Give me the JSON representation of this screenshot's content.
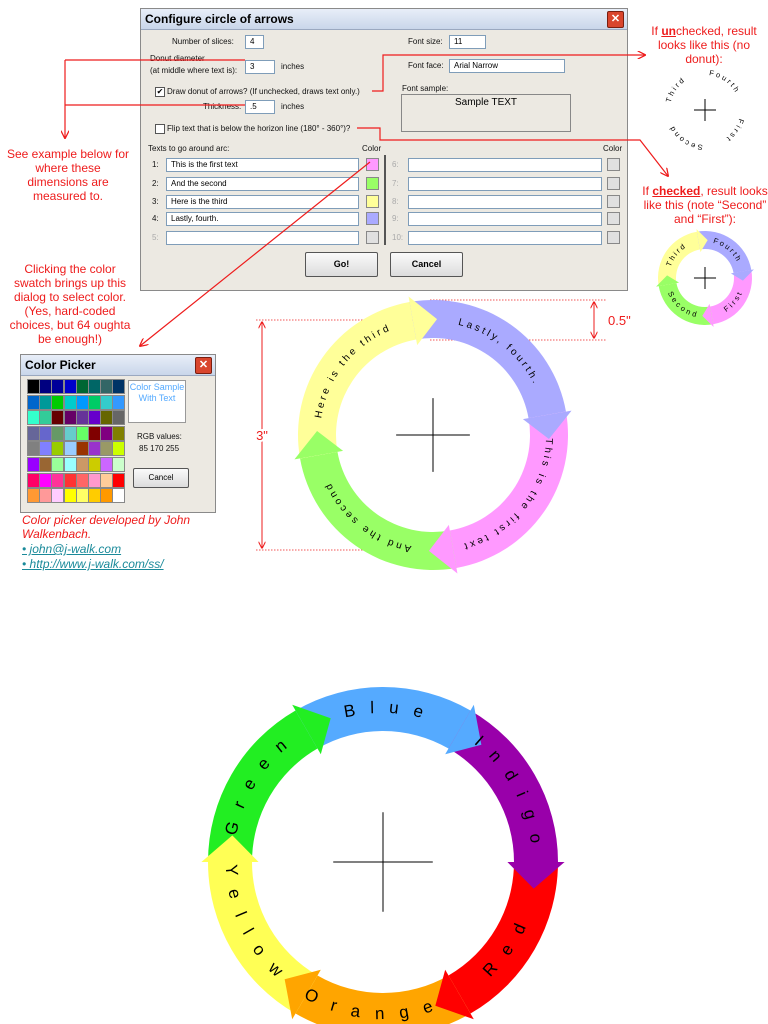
{
  "config_dialog": {
    "title": "Configure circle of arrows",
    "slices_label": "Number of slices:",
    "slices_value": "4",
    "diameter_label": [
      "Donut diameter",
      "(at middle where text is):"
    ],
    "diameter_value": "3",
    "diameter_unit": "inches",
    "donut_checkbox": "Draw donut of arrows? (If unchecked, draws text only.)",
    "thickness_label": "Thickness:",
    "thickness_value": ".5",
    "thickness_unit": "inches",
    "flip_checkbox": "Flip text that is below the horizon line (180° - 360°)?",
    "font_size_label": "Font size:",
    "font_size_value": "11",
    "font_face_label": "Font face:",
    "font_face_value": "Arial Narrow",
    "font_sample_label": "Font sample:",
    "font_sample_text": "Sample TEXT",
    "texts_label": "Texts to go around arc:",
    "color_header": "Color",
    "rows": [
      {
        "num": "1:",
        "text": "This is the first text",
        "color": "#ff99ff"
      },
      {
        "num": "2:",
        "text": "And the second",
        "color": "#99ff66"
      },
      {
        "num": "3:",
        "text": "Here is the third",
        "color": "#ffff99"
      },
      {
        "num": "4:",
        "text": "Lastly, fourth.",
        "color": "#aaaaff"
      },
      {
        "num": "5:",
        "color": "#e0e0e0"
      },
      {
        "num": "6:",
        "color": "#e0e0e0"
      },
      {
        "num": "7:",
        "color": "#e0e0e0"
      },
      {
        "num": "8:",
        "color": "#e0e0e0"
      },
      {
        "num": "9:",
        "color": "#e0e0e0"
      },
      {
        "num": "10:",
        "color": "#e0e0e0"
      }
    ],
    "go": "Go!",
    "cancel": "Cancel"
  },
  "annotations": {
    "dimensions": "See example below for where these dimensions are measured to.",
    "unchecked": {
      "pre": "If ",
      "emph": "un",
      "post": "checked, result looks like this (no donut):"
    },
    "checked": {
      "pre": "If ",
      "emph": "checked",
      "post": ", result looks like this (note “Second” and “First”):"
    },
    "swatch": "Clicking the color swatch brings up this dialog to select color. (Yes, hard-coded choices, but 64 oughta be enough!)"
  },
  "color_picker": {
    "title": "Color Picker",
    "palette": [
      "#000000",
      "#000080",
      "#000099",
      "#0000cc",
      "#006633",
      "#006666",
      "#336666",
      "#003366",
      "#0066cc",
      "#009999",
      "#00cc00",
      "#00cccc",
      "#0099ff",
      "#00cc66",
      "#33cccc",
      "#3399ff",
      "#33ffcc",
      "#33cc99",
      "#660000",
      "#660066",
      "#663399",
      "#6600cc",
      "#666600",
      "#666666",
      "#666699",
      "#6666cc",
      "#669966",
      "#66cccc",
      "#66ff66",
      "#800000",
      "#800080",
      "#808000",
      "#808080",
      "#8080ff",
      "#99cc00",
      "#99ccff",
      "#993300",
      "#9933cc",
      "#999966",
      "#ccff00",
      "#9900ff",
      "#996633",
      "#99ff99",
      "#99ffff",
      "#cc9966",
      "#cccc00",
      "#cc66ff",
      "#ccffcc",
      "#ff0066",
      "#ff00ff",
      "#ff3399",
      "#ff3333",
      "#ff6666",
      "#ff99cc",
      "#ffcc99",
      "#ff0000",
      "#ff9933",
      "#ff9999",
      "#ffccff",
      "#ffff00",
      "#ffff66",
      "#ffcc00",
      "#ff9900",
      "#ffffff"
    ],
    "sample": "Color Sample With Text",
    "sample_color": "#55aaff",
    "rgb_label": "RGB values:",
    "rgb_value": "85 170 255",
    "cancel": "Cancel"
  },
  "credits": {
    "text": "Color picker developed by John Walkenbach.",
    "email": "• john@j-walk.com",
    "url": "• http://www.j-walk.com/ss/"
  },
  "example_donut": {
    "diameter_label": "3\"",
    "thickness_label": "0.5\"",
    "slices": [
      {
        "text": "This is the first text",
        "color": "#ff99ff"
      },
      {
        "text": "And the second",
        "color": "#99ff66"
      },
      {
        "text": "Here is the third",
        "color": "#ffff99"
      },
      {
        "text": "Lastly, fourth.",
        "color": "#aaaaff"
      }
    ]
  },
  "unchecked_example": {
    "texts": [
      "First",
      "Second",
      "Third",
      "Fourth"
    ]
  },
  "checked_example": {
    "slices": [
      {
        "text": "First",
        "color": "#ff99ff"
      },
      {
        "text": "Second",
        "color": "#99ff66"
      },
      {
        "text": "Third",
        "color": "#ffff99"
      },
      {
        "text": "Fourth",
        "color": "#aaaaff"
      }
    ]
  },
  "rainbow_donut": {
    "slices": [
      {
        "text": "Red",
        "color": "#ff0000"
      },
      {
        "text": "Orange",
        "color": "#ffa500"
      },
      {
        "text": "Yellow",
        "color": "#ffff55"
      },
      {
        "text": "Green",
        "color": "#22ee22"
      },
      {
        "text": "Blue",
        "color": "#55aaff"
      },
      {
        "text": "Indigo",
        "color": "#9900aa"
      }
    ]
  }
}
